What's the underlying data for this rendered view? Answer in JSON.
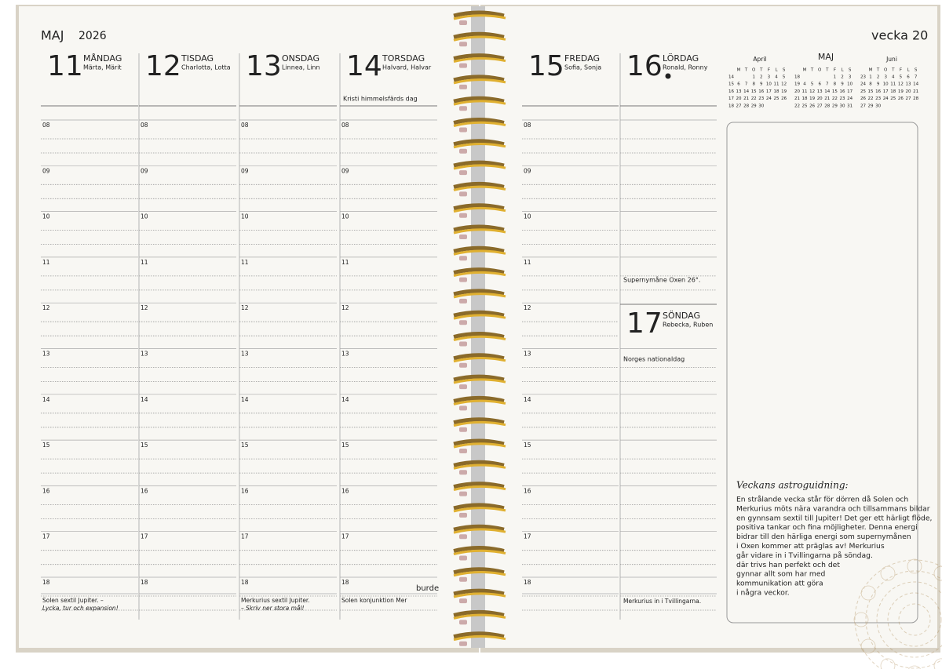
{
  "left_page": {
    "month": "MAJ",
    "year": "2026",
    "days": [
      {
        "date": "11",
        "weekday": "MÅNDAG",
        "names": "Märta, Märit",
        "footer": [
          "Solen sextil Jupiter. –",
          "Lycka, tur och expansion!"
        ]
      },
      {
        "date": "12",
        "weekday": "TISDAG",
        "names": "Charlotta, Lotta"
      },
      {
        "date": "13",
        "weekday": "ONSDAG",
        "names": "Linnea, Linn",
        "footer": [
          "Merkurius sextil Jupiter.",
          "– Skriv ner stora mål!"
        ]
      },
      {
        "date": "14",
        "weekday": "TORSDAG",
        "names": "Halvard, Halvar",
        "color": "#c0392b",
        "note": "Kristi himmelsfärds dag",
        "footer": [
          "Solen konjunktion Mer"
        ]
      }
    ],
    "brand": "burde"
  },
  "hours": [
    "08",
    "09",
    "10",
    "11",
    "12",
    "13",
    "14",
    "15",
    "16",
    "17",
    "18"
  ],
  "right_page": {
    "week_label": "vecka 20",
    "friday": {
      "date": "15",
      "weekday": "FREDAG",
      "names": "Sofia, Sonja"
    },
    "saturday": {
      "date": "16",
      "weekday": "LÖRDAG",
      "names": "Ronald, Ronny",
      "note": "Supernymåne Oxen 26°."
    },
    "sunday": {
      "date": "17",
      "weekday": "SÖNDAG",
      "names": "Rebecka, Ruben",
      "color": "#c0392b",
      "note": "Norges nationaldag",
      "footer": "Merkurius in i Tvillingarna."
    },
    "calendars": [
      {
        "month": "April",
        "weekdays": [
          "M",
          "T",
          "O",
          "T",
          "F",
          "L",
          "S"
        ],
        "weeks": [
          {
            "week": "14",
            "days": [
              null,
              null,
              "1",
              "2",
              "3",
              "4",
              "5"
            ]
          },
          {
            "week": "15",
            "days": [
              "6",
              "7",
              "8",
              "9",
              "10",
              "11",
              "12"
            ]
          },
          {
            "week": "16",
            "days": [
              "13",
              "14",
              "15",
              "16",
              "17",
              "18",
              "19"
            ]
          },
          {
            "week": "17",
            "days": [
              "20",
              "21",
              "22",
              "23",
              "24",
              "25",
              "26"
            ]
          },
          {
            "week": "18",
            "days": [
              "27",
              "28",
              "29",
              "30"
            ]
          }
        ]
      },
      {
        "month": "MAJ",
        "weekdays": [
          "M",
          "T",
          "O",
          "T",
          "F",
          "L",
          "S"
        ],
        "weeks": [
          {
            "week": "18",
            "days": [
              null,
              null,
              null,
              null,
              "1",
              "2",
              "3"
            ]
          },
          {
            "week": "19",
            "days": [
              "4",
              "5",
              "6",
              "7",
              "8",
              "9",
              "10"
            ]
          },
          {
            "week": "20",
            "days": [
              "11",
              "12",
              "13",
              "14",
              "15",
              "16",
              "17"
            ]
          },
          {
            "week": "21",
            "days": [
              "18",
              "19",
              "20",
              "21",
              "22",
              "23",
              "24"
            ]
          },
          {
            "week": "22",
            "days": [
              "25",
              "26",
              "27",
              "28",
              "29",
              "30",
              "31"
            ]
          }
        ]
      },
      {
        "month": "Juni",
        "weekdays": [
          "M",
          "T",
          "O",
          "T",
          "F",
          "L",
          "S"
        ],
        "weeks": [
          {
            "week": "23",
            "days": [
              "1",
              "2",
              "3",
              "4",
              "5",
              "6",
              "7"
            ]
          },
          {
            "week": "24",
            "days": [
              "8",
              "9",
              "10",
              "11",
              "12",
              "13",
              "14"
            ]
          },
          {
            "week": "25",
            "days": [
              "15",
              "16",
              "17",
              "18",
              "19",
              "20",
              "21"
            ]
          },
          {
            "week": "26",
            "days": [
              "22",
              "23",
              "24",
              "25",
              "26",
              "27",
              "28"
            ]
          },
          {
            "week": "27",
            "days": [
              "29",
              "30"
            ]
          }
        ]
      }
    ],
    "astro": {
      "title": "Veckans astroguidning:",
      "lines": [
        "En strålande vecka står för dörren då Solen och",
        "Merkurius möts nära varandra och tillsammans bildar",
        "en gynnsam sextil till Jupiter! Det ger ett härligt flöde,",
        "positiva tankar och fina möjligheter. Denna energi",
        "bidrar till den härliga energi som supernymånen",
        "i Oxen kommer att präglas av! Merkurius",
        "går vidare in i Tvillingarna på söndag.",
        "där trivs han perfekt och det",
        "gynnar allt som har med",
        "kommunikation att göra",
        "i några veckor."
      ]
    }
  }
}
